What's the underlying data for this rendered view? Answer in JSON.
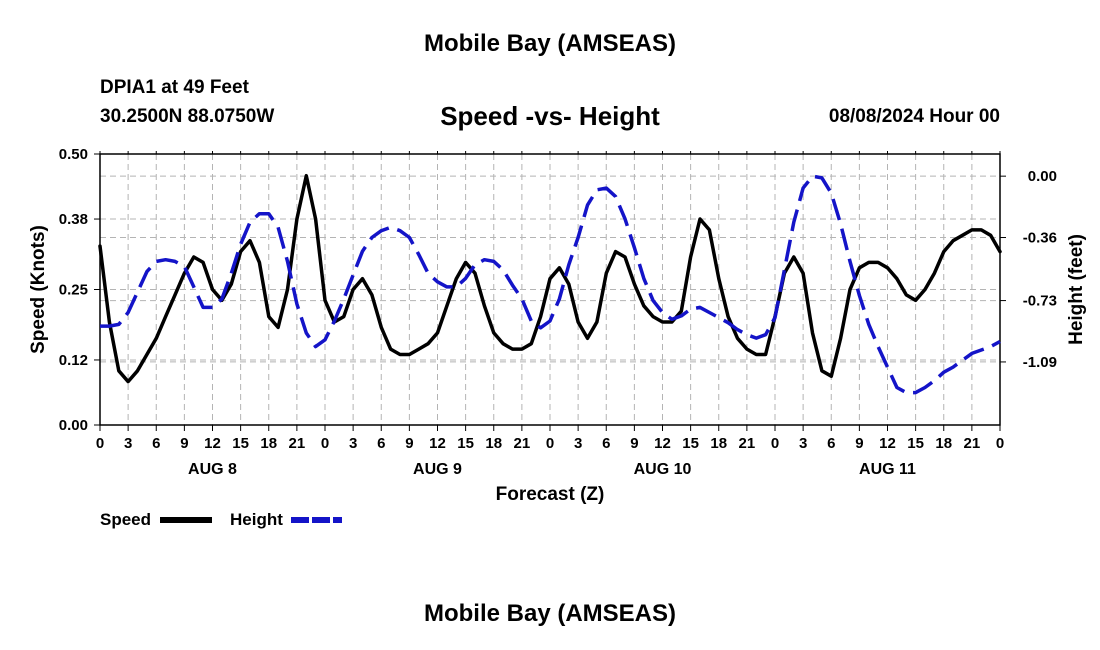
{
  "page_title": "Mobile Bay (AMSEAS)",
  "footer_title": "Mobile Bay (AMSEAS)",
  "station": {
    "name": "DPIA1 at 49 Feet",
    "coords": "30.2500N  88.0750W",
    "datetime": "08/08/2024 Hour 00"
  },
  "chart_data": {
    "type": "line",
    "title": "Speed -vs- Height",
    "xlabel": "Forecast (Z)",
    "ylabel_left": "Speed (Knots)",
    "ylabel_right": "Height (feet)",
    "x_range_hours": [
      0,
      96
    ],
    "left_ylim": [
      0,
      0.5
    ],
    "left_ticks": [
      "0.00",
      "0.12",
      "0.25",
      "0.38",
      "0.50"
    ],
    "right_ylim": [
      -1.46,
      0.13
    ],
    "right_ticks": [
      "0.00",
      "-0.36",
      "-0.73",
      "-1.09"
    ],
    "x_tick_labels": [
      "0",
      "3",
      "6",
      "9",
      "12",
      "15",
      "18",
      "21",
      "0",
      "3",
      "6",
      "9",
      "12",
      "15",
      "18",
      "21",
      "0",
      "3",
      "6",
      "9",
      "12",
      "15",
      "18",
      "21",
      "0",
      "3",
      "6",
      "9",
      "12",
      "15",
      "18",
      "21",
      "0"
    ],
    "day_labels": [
      "AUG 8",
      "AUG 9",
      "AUG 10",
      "AUG 11"
    ],
    "grid": true,
    "legend": "bottom-left",
    "series": [
      {
        "name": "Speed",
        "axis": "left",
        "color": "#000000",
        "style": "solid",
        "x": [
          0,
          1,
          2,
          3,
          4,
          5,
          6,
          7,
          8,
          9,
          10,
          11,
          12,
          13,
          14,
          15,
          16,
          17,
          18,
          19,
          20,
          21,
          22,
          23,
          24,
          25,
          26,
          27,
          28,
          29,
          30,
          31,
          32,
          33,
          34,
          35,
          36,
          37,
          38,
          39,
          40,
          41,
          42,
          43,
          44,
          45,
          46,
          47,
          48,
          49,
          50,
          51,
          52,
          53,
          54,
          55,
          56,
          57,
          58,
          59,
          60,
          61,
          62,
          63,
          64,
          65,
          66,
          67,
          68,
          69,
          70,
          71,
          72,
          73,
          74,
          75,
          76,
          77,
          78,
          79,
          80,
          81,
          82,
          83,
          84,
          85,
          86,
          87,
          88,
          89,
          90,
          91,
          92,
          93,
          94,
          95,
          96
        ],
        "values": [
          0.33,
          0.19,
          0.1,
          0.08,
          0.1,
          0.13,
          0.16,
          0.2,
          0.24,
          0.28,
          0.31,
          0.3,
          0.25,
          0.23,
          0.26,
          0.32,
          0.34,
          0.3,
          0.2,
          0.18,
          0.25,
          0.38,
          0.46,
          0.38,
          0.23,
          0.19,
          0.2,
          0.25,
          0.27,
          0.24,
          0.18,
          0.14,
          0.13,
          0.13,
          0.14,
          0.15,
          0.17,
          0.22,
          0.27,
          0.3,
          0.28,
          0.22,
          0.17,
          0.15,
          0.14,
          0.14,
          0.15,
          0.2,
          0.27,
          0.29,
          0.26,
          0.19,
          0.16,
          0.19,
          0.28,
          0.32,
          0.31,
          0.26,
          0.22,
          0.2,
          0.19,
          0.19,
          0.21,
          0.31,
          0.38,
          0.36,
          0.27,
          0.2,
          0.16,
          0.14,
          0.13,
          0.13,
          0.2,
          0.28,
          0.31,
          0.28,
          0.17,
          0.1,
          0.09,
          0.16,
          0.25,
          0.29,
          0.3,
          0.3,
          0.29,
          0.27,
          0.24,
          0.23,
          0.25,
          0.28,
          0.32,
          0.34,
          0.35,
          0.36,
          0.36,
          0.35,
          0.32
        ]
      },
      {
        "name": "Height",
        "axis": "right",
        "color": "#1414c8",
        "style": "dashed",
        "x": [
          0,
          1,
          2,
          3,
          4,
          5,
          6,
          7,
          8,
          9,
          10,
          11,
          12,
          13,
          14,
          15,
          16,
          17,
          18,
          19,
          20,
          21,
          22,
          23,
          24,
          25,
          26,
          27,
          28,
          29,
          30,
          31,
          32,
          33,
          34,
          35,
          36,
          37,
          38,
          39,
          40,
          41,
          42,
          43,
          44,
          45,
          46,
          47,
          48,
          49,
          50,
          51,
          52,
          53,
          54,
          55,
          56,
          57,
          58,
          59,
          60,
          61,
          62,
          63,
          64,
          65,
          66,
          67,
          68,
          69,
          70,
          71,
          72,
          73,
          74,
          75,
          76,
          77,
          78,
          79,
          80,
          81,
          82,
          83,
          84,
          85,
          86,
          87,
          88,
          89,
          90,
          91,
          92,
          93,
          94,
          95,
          96
        ],
        "values": [
          -0.88,
          -0.88,
          -0.87,
          -0.8,
          -0.68,
          -0.56,
          -0.5,
          -0.49,
          -0.5,
          -0.53,
          -0.65,
          -0.77,
          -0.77,
          -0.72,
          -0.57,
          -0.4,
          -0.27,
          -0.22,
          -0.22,
          -0.3,
          -0.5,
          -0.75,
          -0.92,
          -1.0,
          -0.96,
          -0.85,
          -0.72,
          -0.58,
          -0.44,
          -0.36,
          -0.32,
          -0.3,
          -0.32,
          -0.36,
          -0.46,
          -0.57,
          -0.62,
          -0.65,
          -0.65,
          -0.6,
          -0.52,
          -0.49,
          -0.5,
          -0.55,
          -0.64,
          -0.72,
          -0.85,
          -0.89,
          -0.85,
          -0.72,
          -0.52,
          -0.36,
          -0.17,
          -0.08,
          -0.07,
          -0.12,
          -0.25,
          -0.42,
          -0.6,
          -0.73,
          -0.8,
          -0.84,
          -0.82,
          -0.78,
          -0.77,
          -0.8,
          -0.83,
          -0.86,
          -0.9,
          -0.93,
          -0.95,
          -0.93,
          -0.83,
          -0.55,
          -0.27,
          -0.07,
          0.0,
          -0.01,
          -0.1,
          -0.28,
          -0.5,
          -0.7,
          -0.87,
          -1.0,
          -1.12,
          -1.24,
          -1.27,
          -1.27,
          -1.24,
          -1.2,
          -1.15,
          -1.12,
          -1.08,
          -1.04,
          -1.02,
          -1.0,
          -0.97
        ]
      }
    ]
  }
}
